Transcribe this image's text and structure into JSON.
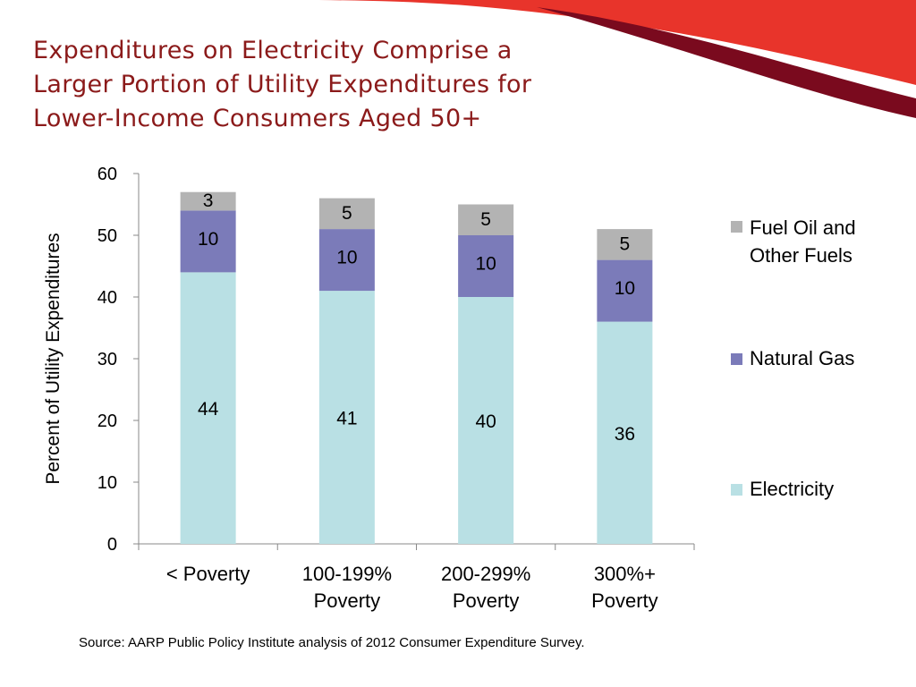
{
  "slide": {
    "title_lines": [
      "Expenditures on Electricity Comprise a",
      "Larger Portion of Utility Expenditures for",
      "Lower-Income Consumers Aged 50+"
    ],
    "source": "Source:  AARP Public Policy Institute analysis of 2012 Consumer Expenditure Survey.",
    "colors": {
      "title": "#8b1a1a",
      "accent_red": "#e8342b",
      "accent_dark": "#7a0a1e"
    }
  },
  "chart_data": {
    "type": "bar",
    "stacked": true,
    "categories": [
      [
        "< Poverty"
      ],
      [
        "100-199%",
        "Poverty"
      ],
      [
        "200-299%",
        "Poverty"
      ],
      [
        "300%+",
        "Poverty"
      ]
    ],
    "series": [
      {
        "name": "Electricity",
        "values": [
          44,
          41,
          40,
          36
        ],
        "color": "#b9e0e4"
      },
      {
        "name": "Natural Gas",
        "values": [
          10,
          10,
          10,
          10
        ],
        "color": "#7b7bb9"
      },
      {
        "name": "Fuel Oil and Other Fuels",
        "values": [
          3,
          5,
          5,
          5
        ],
        "color": "#b3b3b3"
      }
    ],
    "legend_lines": [
      [
        "Electricity"
      ],
      [
        "Natural Gas"
      ],
      [
        "Fuel Oil and",
        "Other Fuels"
      ]
    ],
    "ylabel": "Percent of Utility Expenditures",
    "xlabel": "",
    "ylim": [
      0,
      60
    ],
    "yticks": [
      0,
      10,
      20,
      30,
      40,
      50,
      60
    ],
    "grid": false,
    "legend_position": "right"
  }
}
